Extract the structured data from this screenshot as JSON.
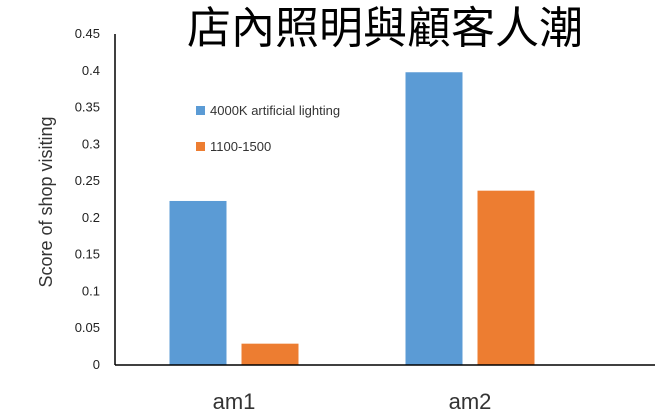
{
  "chart_data": {
    "type": "bar",
    "title": "店內照明與顧客人潮",
    "ylabel": "Score of shop visiting",
    "xlabel": "",
    "categories": [
      "am1",
      "am2"
    ],
    "ylim": [
      0,
      0.45
    ],
    "yticks": [
      "0",
      "0.05",
      "0.1",
      "0.15",
      "0.2",
      "0.25",
      "0.3",
      "0.35",
      "0.4",
      "0.45"
    ],
    "grid": false,
    "legend_position": "inside-left",
    "series": [
      {
        "name": "4000K artificial lighting",
        "color": "#5b9bd5",
        "values": [
          0.223,
          0.398
        ]
      },
      {
        "name": "1100-1500",
        "color": "#ed7d31",
        "values": [
          0.029,
          0.237
        ]
      }
    ]
  }
}
